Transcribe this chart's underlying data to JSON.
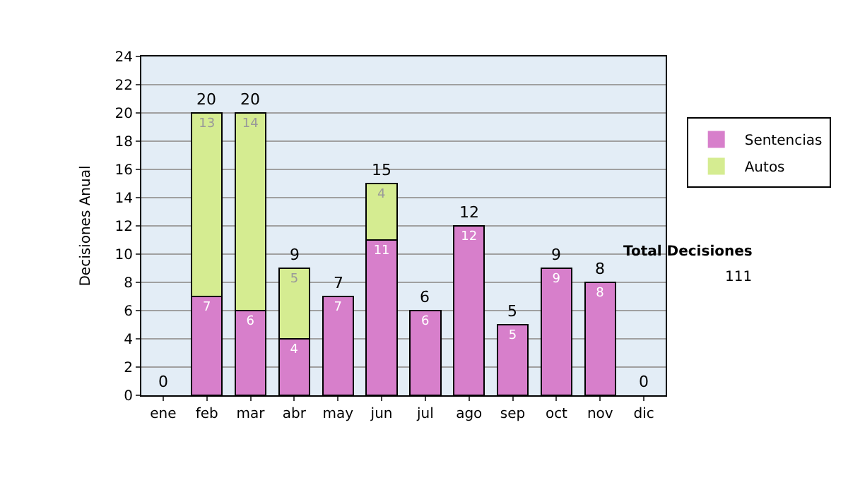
{
  "chart_data": {
    "type": "bar",
    "stacked": true,
    "ylabel": "Decisiones Anual",
    "categories": [
      "ene",
      "feb",
      "mar",
      "abr",
      "may",
      "jun",
      "jul",
      "ago",
      "sep",
      "oct",
      "nov",
      "dic"
    ],
    "series": [
      {
        "name": "Sentencias",
        "color": "#d77fcb",
        "values": [
          0,
          7,
          6,
          4,
          7,
          11,
          6,
          12,
          5,
          9,
          8,
          0
        ],
        "value_labels": [
          null,
          "7",
          "6",
          "4",
          "7",
          "11",
          "6",
          "12",
          "5",
          "9",
          "8",
          null
        ]
      },
      {
        "name": "Autos",
        "color": "#d5ec91",
        "values": [
          0,
          13,
          14,
          5,
          0,
          4,
          0,
          0,
          0,
          0,
          0,
          0
        ],
        "value_labels": [
          null,
          "13",
          "14",
          "5",
          null,
          "4",
          null,
          null,
          null,
          null,
          null,
          null
        ]
      }
    ],
    "totals": [
      "0",
      "20",
      "20",
      "9",
      "7",
      "15",
      "6",
      "12",
      "5",
      "9",
      "8",
      "0"
    ],
    "ylim": [
      0,
      24
    ],
    "yticks": [
      0,
      2,
      4,
      6,
      8,
      10,
      12,
      14,
      16,
      18,
      20,
      22,
      24
    ],
    "grid": "y",
    "legend": "right",
    "annotations": [
      "Total Decisiones",
      "111"
    ]
  }
}
